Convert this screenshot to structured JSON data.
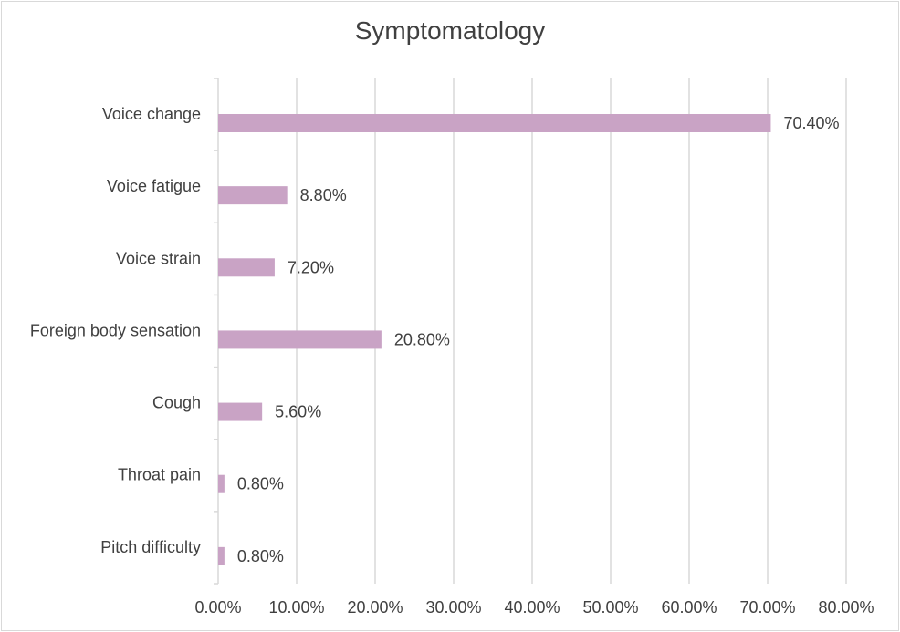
{
  "chart_data": {
    "type": "bar",
    "orientation": "horizontal",
    "title": "Symptomatology",
    "categories": [
      "Voice change",
      "Voice fatigue",
      "Voice strain",
      "Foreign body sensation",
      "Cough",
      "Throat pain",
      "Pitch difficulty"
    ],
    "values": [
      70.4,
      8.8,
      7.2,
      20.8,
      5.6,
      0.8,
      0.8
    ],
    "data_labels": [
      "70.40%",
      "8.80%",
      "7.20%",
      "20.80%",
      "5.60%",
      "0.80%",
      "0.80%"
    ],
    "xlim": [
      0,
      80
    ],
    "x_ticks": [
      "0.00%",
      "10.00%",
      "20.00%",
      "30.00%",
      "40.00%",
      "50.00%",
      "60.00%",
      "70.00%",
      "80.00%"
    ],
    "grid": "vertical",
    "legend": "none",
    "bar_color": "#c9a3c5",
    "grid_color": "#d9d9d9",
    "text_color": "#404040"
  }
}
